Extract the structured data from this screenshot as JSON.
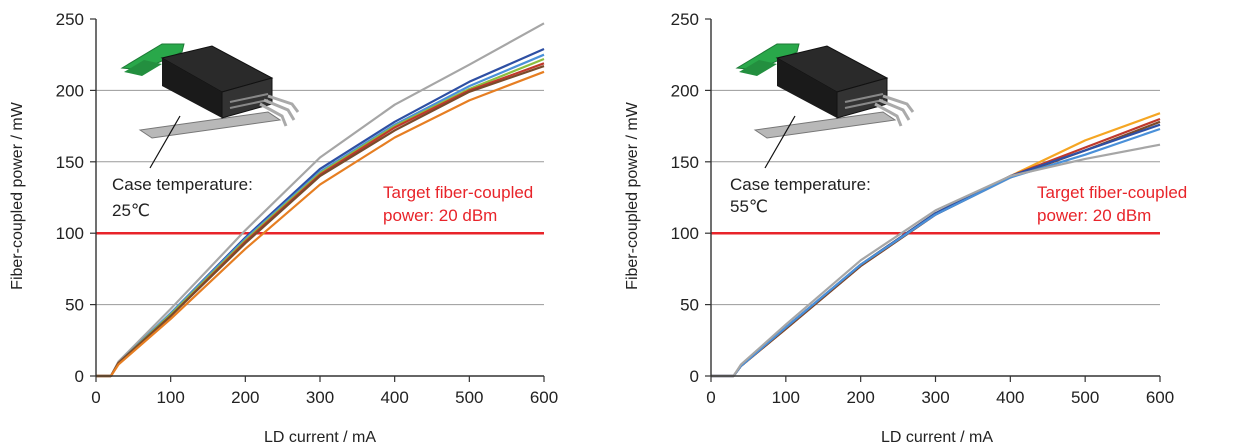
{
  "colors": {
    "target_line": "#e8242a",
    "target_text": "#e8242a",
    "grid": "#9a9a9a",
    "axis": "#333333",
    "device_body": "#222222",
    "device_board": "#29a84a",
    "device_base": "#b8b8b8"
  },
  "chart_data": [
    {
      "type": "line",
      "title": "",
      "xlabel": "LD current / mA",
      "ylabel": "Fiber-coupled power / mW",
      "xlim": [
        0,
        600
      ],
      "ylim": [
        0,
        250
      ],
      "xticks": [
        "0",
        "100",
        "200",
        "300",
        "400",
        "500",
        "600"
      ],
      "yticks": [
        "0",
        "50",
        "100",
        "150",
        "200",
        "250"
      ],
      "grid": "horizontal",
      "annotation": [
        "Case temperature:",
        "25℃"
      ],
      "target_label": [
        "Target fiber-coupled",
        "power: 20 dBm"
      ],
      "target_value": 100,
      "series": [
        {
          "color": "#a6a6a6",
          "x": [
            0,
            20,
            30,
            100,
            200,
            300,
            400,
            500,
            600
          ],
          "y": [
            0,
            0,
            10,
            47,
            102,
            153,
            190,
            218,
            247
          ]
        },
        {
          "color": "#2e4fa3",
          "x": [
            0,
            20,
            30,
            100,
            200,
            300,
            400,
            500,
            600
          ],
          "y": [
            0,
            0,
            9,
            44,
            97,
            145,
            178,
            206,
            229
          ]
        },
        {
          "color": "#4a90d9",
          "x": [
            0,
            20,
            30,
            100,
            200,
            300,
            400,
            500,
            600
          ],
          "y": [
            0,
            0,
            9,
            44,
            96,
            143,
            176,
            203,
            225
          ]
        },
        {
          "color": "#8cbf3f",
          "x": [
            0,
            20,
            30,
            100,
            200,
            300,
            400,
            500,
            600
          ],
          "y": [
            0,
            0,
            9,
            43,
            95,
            142,
            175,
            201,
            222
          ]
        },
        {
          "color": "#c0392b",
          "x": [
            0,
            20,
            30,
            100,
            200,
            300,
            400,
            500,
            600
          ],
          "y": [
            0,
            0,
            9,
            42,
            94,
            141,
            174,
            200,
            219
          ]
        },
        {
          "color": "#7a4a2a",
          "x": [
            0,
            20,
            30,
            100,
            200,
            300,
            400,
            500,
            600
          ],
          "y": [
            0,
            0,
            9,
            42,
            93,
            140,
            172,
            199,
            217
          ]
        },
        {
          "color": "#e67e22",
          "x": [
            0,
            20,
            30,
            100,
            200,
            300,
            400,
            500,
            600
          ],
          "y": [
            0,
            0,
            8,
            40,
            89,
            134,
            167,
            193,
            213
          ]
        }
      ]
    },
    {
      "type": "line",
      "title": "",
      "xlabel": "LD current / mA",
      "ylabel": "Fiber-coupled power / mW",
      "xlim": [
        0,
        600
      ],
      "ylim": [
        0,
        250
      ],
      "xticks": [
        "0",
        "100",
        "200",
        "300",
        "400",
        "500",
        "600"
      ],
      "yticks": [
        "0",
        "50",
        "100",
        "150",
        "200",
        "250"
      ],
      "grid": "horizontal",
      "annotation": [
        "Case temperature:",
        "55℃"
      ],
      "target_label": [
        "Target fiber-coupled",
        "power: 20 dBm"
      ],
      "target_value": 100,
      "series": [
        {
          "color": "#f5a623",
          "x": [
            0,
            30,
            40,
            100,
            200,
            300,
            400,
            500,
            600
          ],
          "y": [
            0,
            0,
            7,
            33,
            78,
            114,
            140,
            165,
            184
          ]
        },
        {
          "color": "#c0392b",
          "x": [
            0,
            30,
            40,
            100,
            200,
            300,
            400,
            500,
            600
          ],
          "y": [
            0,
            0,
            7,
            33,
            77,
            113,
            140,
            160,
            180
          ]
        },
        {
          "color": "#7a4a2a",
          "x": [
            0,
            30,
            40,
            100,
            200,
            300,
            400,
            500,
            600
          ],
          "y": [
            0,
            0,
            7,
            33,
            77,
            113,
            139,
            158,
            178
          ]
        },
        {
          "color": "#2e4fa3",
          "x": [
            0,
            30,
            40,
            100,
            200,
            300,
            400,
            500,
            600
          ],
          "y": [
            0,
            0,
            7,
            34,
            78,
            114,
            140,
            158,
            176
          ]
        },
        {
          "color": "#4a90d9",
          "x": [
            0,
            30,
            40,
            100,
            200,
            300,
            400,
            500,
            600
          ],
          "y": [
            0,
            0,
            7,
            34,
            78,
            113,
            139,
            155,
            173
          ]
        },
        {
          "color": "#a6a6a6",
          "x": [
            0,
            30,
            40,
            100,
            200,
            300,
            400,
            500,
            600
          ],
          "y": [
            0,
            0,
            8,
            36,
            81,
            116,
            140,
            152,
            162
          ]
        }
      ]
    }
  ]
}
